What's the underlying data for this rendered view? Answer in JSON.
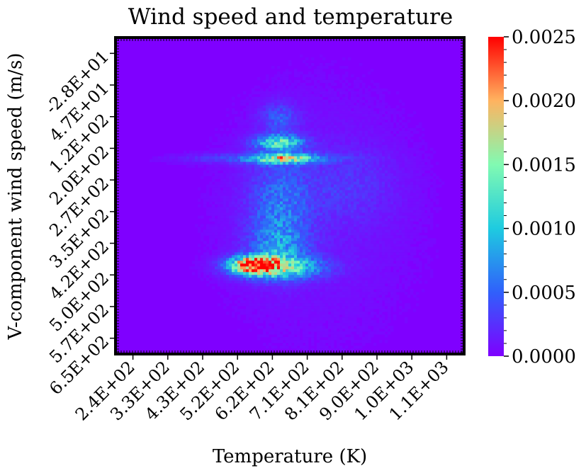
{
  "chart_data": {
    "type": "heatmap",
    "title": "Wind speed and temperature",
    "xlabel": "Temperature (K)",
    "ylabel": "V-component wind speed (m/s)",
    "x_ticks": [
      "2.4E+02",
      "3.3E+02",
      "4.3E+02",
      "5.2E+02",
      "6.2E+02",
      "7.1E+02",
      "8.1E+02",
      "9.0E+02",
      "1.0E+03",
      "1.1E+03"
    ],
    "y_ticks": [
      "-2.8E+01",
      "4.7E+01",
      "1.2E+02",
      "2.0E+02",
      "2.7E+02",
      "3.5E+02",
      "4.2E+02",
      "5.0E+02",
      "5.7E+02",
      "6.5E+02"
    ],
    "y_inverted": true,
    "colormap": "rainbow",
    "colorbar": {
      "min": 0.0,
      "max": 0.0025,
      "ticks": [
        "0.0000",
        "0.0005",
        "0.0010",
        "0.0015",
        "0.0020",
        "0.0025"
      ]
    },
    "grid": false,
    "density_peaks": [
      {
        "x": 620,
        "y": 505,
        "value": 0.0025
      },
      {
        "x": 640,
        "y": 505,
        "value": 0.002
      },
      {
        "x": 710,
        "y": 255,
        "value": 0.0012
      },
      {
        "x": 690,
        "y": 220,
        "value": 0.0013
      },
      {
        "x": 690,
        "y": 160,
        "value": 0.0011
      }
    ]
  }
}
